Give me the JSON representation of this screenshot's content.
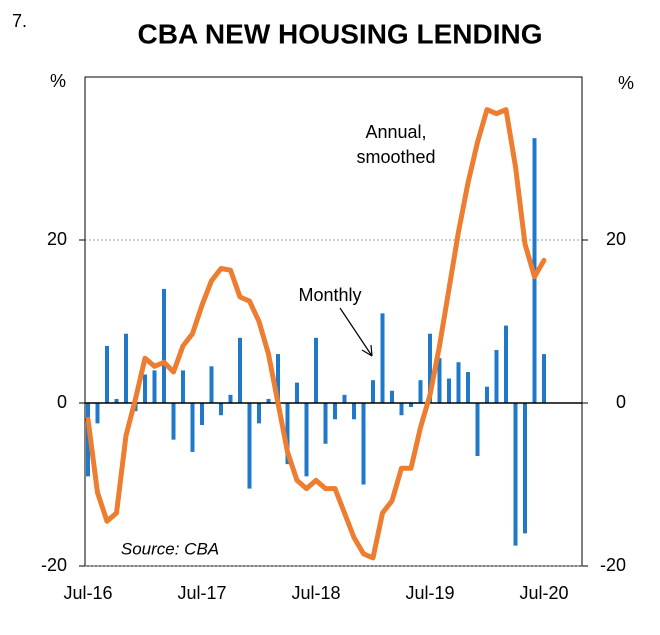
{
  "chart_data": {
    "type": "bar_line",
    "figure_number": "7.",
    "title": "CBA NEW HOUSING LENDING",
    "y_label": "%",
    "y2_label": "%",
    "line_label": [
      "Annual,",
      "smoothed"
    ],
    "bar_label": "Monthly",
    "source": "Source: CBA",
    "categories": [
      "Jul-16",
      null,
      null,
      null,
      null,
      null,
      null,
      null,
      null,
      null,
      null,
      null,
      "Jul-17",
      null,
      null,
      null,
      null,
      null,
      null,
      null,
      null,
      null,
      null,
      null,
      "Jul-18",
      null,
      null,
      null,
      null,
      null,
      null,
      null,
      null,
      null,
      null,
      null,
      "Jul-19",
      null,
      null,
      null,
      null,
      null,
      null,
      null,
      null,
      null,
      null,
      null,
      "Jul-20"
    ],
    "series": [
      {
        "name": "Monthly",
        "type": "bar",
        "color": "#1f78c8",
        "values": [
          -9,
          -2.5,
          7,
          0.5,
          8.5,
          -1,
          3.5,
          4,
          14,
          -4.5,
          4,
          -6,
          -2.7,
          4.5,
          -1.5,
          1,
          8,
          -10.5,
          -2.5,
          0.5,
          6,
          -7.5,
          2.5,
          -9,
          8,
          -5,
          -2,
          1,
          -2,
          -10,
          2.8,
          11,
          1.5,
          -1.5,
          -0.5,
          2.8,
          8.5,
          5.5,
          3,
          5,
          3.8,
          -6.5,
          2,
          6.5,
          9.5,
          -17.5,
          -16,
          32.5,
          6
        ]
      },
      {
        "name": "Annual, smoothed",
        "type": "line",
        "color": "#ed7d31",
        "values": [
          -2,
          -11,
          -14.5,
          -13.5,
          -4,
          0.5,
          5.5,
          4.5,
          5,
          3.8,
          7,
          8.5,
          12,
          15,
          16.5,
          16.3,
          13,
          12.5,
          10,
          6,
          0,
          -6,
          -9.5,
          -10.5,
          -9.5,
          -10.5,
          -10.5,
          -13.5,
          -16.5,
          -18.5,
          -19,
          -13.5,
          -12,
          -8,
          -8,
          -3,
          1,
          7,
          14,
          21,
          27,
          32,
          36,
          35.5,
          36,
          29,
          19.5,
          15.5,
          17.5
        ]
      }
    ],
    "ylim": [
      -20,
      40
    ],
    "yticks": [
      -20,
      0,
      20
    ],
    "y2lim": [
      -20,
      40
    ],
    "y2ticks": [
      -20,
      0,
      20
    ],
    "grid": true
  }
}
